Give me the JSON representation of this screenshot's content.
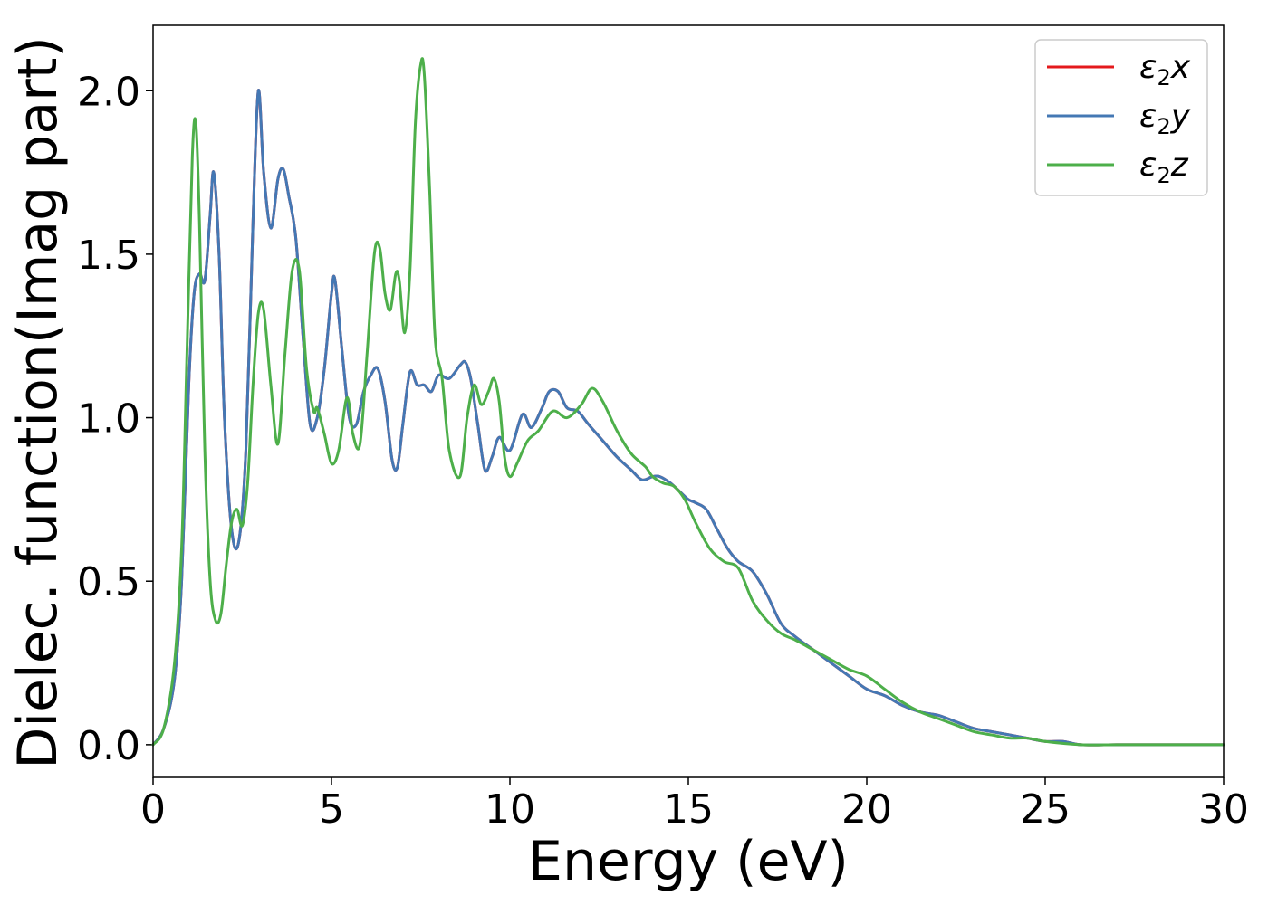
{
  "chart_data": {
    "type": "line",
    "xlabel": "Energy (eV)",
    "ylabel": "Dielec. function(Imag part)",
    "xlim": [
      0,
      30
    ],
    "ylim": [
      -0.1,
      2.2
    ],
    "xticks": [
      0,
      5,
      10,
      15,
      20,
      25,
      30
    ],
    "xtick_labels": [
      "0",
      "5",
      "10",
      "15",
      "20",
      "25",
      "30"
    ],
    "yticks": [
      0.0,
      0.5,
      1.0,
      1.5,
      2.0
    ],
    "ytick_labels": [
      "0.0",
      "0.5",
      "1.0",
      "1.5",
      "2.0"
    ],
    "grid": false,
    "legend_position": "top-right",
    "series": [
      {
        "name": "ε2x",
        "label_base": "ε",
        "label_sub": "2",
        "label_var": "x",
        "color": "#e41a1c",
        "x": [
          0,
          0.3,
          0.6,
          0.8,
          1.0,
          1.15,
          1.3,
          1.45,
          1.6,
          1.7,
          1.85,
          2.0,
          2.2,
          2.4,
          2.6,
          2.8,
          2.95,
          3.1,
          3.3,
          3.5,
          3.65,
          3.8,
          4.0,
          4.2,
          4.4,
          4.6,
          4.8,
          5.0,
          5.1,
          5.3,
          5.5,
          5.7,
          5.9,
          6.1,
          6.3,
          6.5,
          6.7,
          6.85,
          7.0,
          7.2,
          7.4,
          7.6,
          7.8,
          8.0,
          8.3,
          8.6,
          8.75,
          8.9,
          9.1,
          9.3,
          9.5,
          9.7,
          10.0,
          10.35,
          10.6,
          10.9,
          11.1,
          11.35,
          11.6,
          11.9,
          12.2,
          12.6,
          13.0,
          13.4,
          13.7,
          14.0,
          14.2,
          14.5,
          14.8,
          15.0,
          15.2,
          15.5,
          15.8,
          16.1,
          16.4,
          16.8,
          17.2,
          17.6,
          18.0,
          18.5,
          19.0,
          19.5,
          20.0,
          20.5,
          21.0,
          21.5,
          22.0,
          22.5,
          23.0,
          23.5,
          24.0,
          24.5,
          25.0,
          25.5,
          26.0,
          27.0,
          28.0,
          29.0,
          30.0
        ],
        "values": [
          0.0,
          0.05,
          0.2,
          0.5,
          1.1,
          1.38,
          1.44,
          1.42,
          1.62,
          1.75,
          1.5,
          1.0,
          0.66,
          0.62,
          0.9,
          1.6,
          2.0,
          1.75,
          1.58,
          1.73,
          1.76,
          1.68,
          1.55,
          1.25,
          0.98,
          1.0,
          1.15,
          1.38,
          1.42,
          1.2,
          1.0,
          0.98,
          1.08,
          1.13,
          1.15,
          1.05,
          0.87,
          0.85,
          0.98,
          1.14,
          1.1,
          1.1,
          1.08,
          1.13,
          1.12,
          1.16,
          1.17,
          1.12,
          0.98,
          0.84,
          0.88,
          0.94,
          0.9,
          1.01,
          0.97,
          1.03,
          1.08,
          1.08,
          1.03,
          1.02,
          0.98,
          0.93,
          0.88,
          0.84,
          0.81,
          0.82,
          0.82,
          0.8,
          0.77,
          0.75,
          0.74,
          0.72,
          0.66,
          0.6,
          0.56,
          0.53,
          0.46,
          0.37,
          0.33,
          0.29,
          0.25,
          0.21,
          0.17,
          0.15,
          0.12,
          0.1,
          0.09,
          0.07,
          0.05,
          0.04,
          0.03,
          0.02,
          0.01,
          0.01,
          0.0,
          0.0,
          0.0,
          0.0,
          0.0
        ]
      },
      {
        "name": "ε2y",
        "label_base": "ε",
        "label_sub": "2",
        "label_var": "y",
        "color": "#4478b4",
        "x": [
          0,
          0.3,
          0.6,
          0.8,
          1.0,
          1.15,
          1.3,
          1.45,
          1.6,
          1.7,
          1.85,
          2.0,
          2.2,
          2.4,
          2.6,
          2.8,
          2.95,
          3.1,
          3.3,
          3.5,
          3.65,
          3.8,
          4.0,
          4.2,
          4.4,
          4.6,
          4.8,
          5.0,
          5.1,
          5.3,
          5.5,
          5.7,
          5.9,
          6.1,
          6.3,
          6.5,
          6.7,
          6.85,
          7.0,
          7.2,
          7.4,
          7.6,
          7.8,
          8.0,
          8.3,
          8.6,
          8.75,
          8.9,
          9.1,
          9.3,
          9.5,
          9.7,
          10.0,
          10.35,
          10.6,
          10.9,
          11.1,
          11.35,
          11.6,
          11.9,
          12.2,
          12.6,
          13.0,
          13.4,
          13.7,
          14.0,
          14.2,
          14.5,
          14.8,
          15.0,
          15.2,
          15.5,
          15.8,
          16.1,
          16.4,
          16.8,
          17.2,
          17.6,
          18.0,
          18.5,
          19.0,
          19.5,
          20.0,
          20.5,
          21.0,
          21.5,
          22.0,
          22.5,
          23.0,
          23.5,
          24.0,
          24.5,
          25.0,
          25.5,
          26.0,
          27.0,
          28.0,
          29.0,
          30.0
        ],
        "values": [
          0.0,
          0.05,
          0.2,
          0.5,
          1.1,
          1.38,
          1.44,
          1.42,
          1.62,
          1.75,
          1.5,
          1.0,
          0.66,
          0.62,
          0.9,
          1.6,
          2.0,
          1.75,
          1.58,
          1.73,
          1.76,
          1.68,
          1.55,
          1.25,
          0.98,
          1.0,
          1.15,
          1.38,
          1.42,
          1.2,
          1.0,
          0.98,
          1.08,
          1.13,
          1.15,
          1.05,
          0.87,
          0.85,
          0.98,
          1.14,
          1.1,
          1.1,
          1.08,
          1.13,
          1.12,
          1.16,
          1.17,
          1.12,
          0.98,
          0.84,
          0.88,
          0.94,
          0.9,
          1.01,
          0.97,
          1.03,
          1.08,
          1.08,
          1.03,
          1.02,
          0.98,
          0.93,
          0.88,
          0.84,
          0.81,
          0.82,
          0.82,
          0.8,
          0.77,
          0.75,
          0.74,
          0.72,
          0.66,
          0.6,
          0.56,
          0.53,
          0.46,
          0.37,
          0.33,
          0.29,
          0.25,
          0.21,
          0.17,
          0.15,
          0.12,
          0.1,
          0.09,
          0.07,
          0.05,
          0.04,
          0.03,
          0.02,
          0.01,
          0.01,
          0.0,
          0.0,
          0.0,
          0.0,
          0.0
        ]
      },
      {
        "name": "ε2z",
        "label_base": "ε",
        "label_sub": "2",
        "label_var": "z",
        "color": "#4daf4a",
        "x": [
          0,
          0.3,
          0.6,
          0.8,
          0.95,
          1.1,
          1.2,
          1.3,
          1.45,
          1.6,
          1.75,
          1.9,
          2.05,
          2.2,
          2.35,
          2.5,
          2.65,
          2.8,
          2.95,
          3.1,
          3.3,
          3.5,
          3.7,
          3.9,
          4.1,
          4.3,
          4.5,
          4.6,
          4.8,
          5.0,
          5.2,
          5.4,
          5.5,
          5.6,
          5.8,
          6.0,
          6.2,
          6.35,
          6.5,
          6.65,
          6.8,
          6.9,
          7.05,
          7.2,
          7.35,
          7.5,
          7.6,
          7.75,
          7.9,
          8.1,
          8.3,
          8.6,
          8.8,
          9.0,
          9.2,
          9.4,
          9.55,
          9.7,
          9.85,
          10.0,
          10.2,
          10.5,
          10.8,
          11.2,
          11.6,
          12.0,
          12.3,
          12.6,
          13.0,
          13.4,
          13.8,
          14.0,
          14.3,
          14.6,
          14.9,
          15.2,
          15.6,
          16.0,
          16.4,
          16.8,
          17.2,
          17.6,
          18.0,
          18.5,
          19.0,
          19.5,
          20.0,
          20.5,
          21.0,
          21.5,
          22.0,
          22.5,
          23.0,
          23.5,
          24.0,
          24.5,
          25.0,
          26.0,
          27.0,
          28.0,
          29.0,
          30.0
        ],
        "values": [
          0.0,
          0.05,
          0.25,
          0.6,
          1.2,
          1.8,
          1.9,
          1.6,
          0.9,
          0.5,
          0.38,
          0.4,
          0.55,
          0.68,
          0.72,
          0.67,
          0.8,
          1.1,
          1.32,
          1.33,
          1.1,
          0.92,
          1.2,
          1.45,
          1.45,
          1.15,
          1.02,
          1.03,
          0.95,
          0.86,
          0.9,
          1.05,
          1.04,
          0.95,
          0.92,
          1.2,
          1.5,
          1.52,
          1.38,
          1.33,
          1.44,
          1.42,
          1.26,
          1.45,
          1.9,
          2.08,
          2.05,
          1.7,
          1.25,
          1.12,
          0.9,
          0.82,
          1.0,
          1.1,
          1.04,
          1.08,
          1.12,
          1.05,
          0.88,
          0.82,
          0.86,
          0.93,
          0.96,
          1.02,
          1.0,
          1.04,
          1.09,
          1.05,
          0.96,
          0.89,
          0.85,
          0.82,
          0.8,
          0.79,
          0.75,
          0.68,
          0.6,
          0.56,
          0.54,
          0.44,
          0.38,
          0.34,
          0.32,
          0.29,
          0.26,
          0.23,
          0.21,
          0.17,
          0.13,
          0.1,
          0.08,
          0.06,
          0.04,
          0.03,
          0.02,
          0.02,
          0.01,
          0.0,
          0.0,
          0.0,
          0.0,
          0.0
        ]
      }
    ]
  }
}
